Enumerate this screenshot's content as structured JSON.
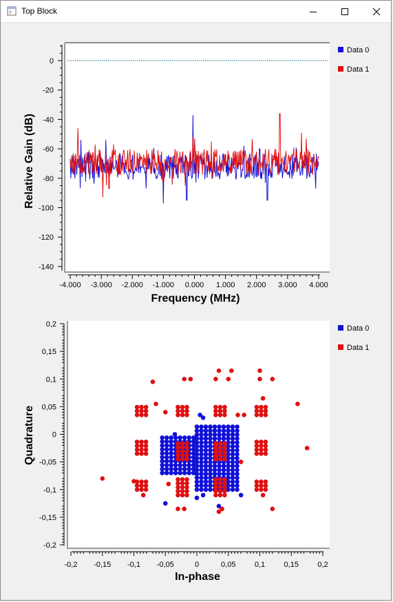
{
  "window": {
    "title": "Top Block",
    "icons": {
      "app": "app-window-icon",
      "minimize": "minimize-icon",
      "maximize": "maximize-icon",
      "close": "close-icon"
    }
  },
  "freq_plot": {
    "xlabel": "Frequency (MHz)",
    "ylabel": "Relative Gain (dB)",
    "xticks": [
      "-4.000",
      "-3.000",
      "-2.000",
      "-1.000",
      "0.000",
      "1.000",
      "2.000",
      "3.000",
      "4.000"
    ],
    "yticks": [
      "0",
      "-20",
      "-40",
      "-60",
      "-80",
      "-100",
      "-120",
      "-140"
    ],
    "legend": [
      {
        "label": "Data 0",
        "color": "#1010d8"
      },
      {
        "label": "Data 1",
        "color": "#e01010"
      }
    ]
  },
  "const_plot": {
    "xlabel": "In-phase",
    "ylabel": "Quadrature",
    "xticks": [
      "-0,2",
      "-0,15",
      "-0,1",
      "-0,05",
      "0",
      "0,05",
      "0,1",
      "0,15",
      "0,2"
    ],
    "yticks": [
      "0,2",
      "0,15",
      "0,1",
      "0,05",
      "0",
      "-0,05",
      "-0,1",
      "-0,15",
      "-0,2"
    ],
    "legend": [
      {
        "label": "Data 0",
        "color": "#1010d8"
      },
      {
        "label": "Data 1",
        "color": "#e01010"
      }
    ]
  },
  "chart_data": [
    {
      "type": "line",
      "xlabel": "Frequency (MHz)",
      "ylabel": "Relative Gain (dB)",
      "xlim": [
        -4,
        4
      ],
      "ylim": [
        -140,
        10
      ],
      "reference_line": 0,
      "grid": false,
      "legend_position": "right",
      "series": [
        {
          "name": "Data 0",
          "color": "#1010d8",
          "baseline": -72,
          "noise": 9,
          "peaks": [
            [
              -3.65,
              -54
            ],
            [
              -2.85,
              -54
            ],
            [
              -0.05,
              -37
            ],
            [
              1.6,
              -58
            ],
            [
              2.1,
              -60
            ]
          ],
          "dips": [
            [
              -1.0,
              -97
            ],
            [
              -0.25,
              -95
            ],
            [
              2.35,
              -95
            ],
            [
              3.9,
              -87
            ]
          ]
        },
        {
          "name": "Data 1",
          "color": "#e01010",
          "baseline": -69,
          "noise": 9,
          "peaks": [
            [
              -3.75,
              -46
            ],
            [
              -3.2,
              -57
            ],
            [
              -2.6,
              -57
            ],
            [
              -0.05,
              -52
            ],
            [
              0.55,
              -55
            ],
            [
              2.75,
              -36
            ],
            [
              3.45,
              -49
            ],
            [
              3.6,
              -53
            ]
          ],
          "dips": [
            [
              -2.95,
              -93
            ],
            [
              -2.75,
              -87
            ],
            [
              -0.3,
              -85
            ]
          ]
        }
      ]
    },
    {
      "type": "scatter",
      "xlabel": "In-phase",
      "ylabel": "Quadrature",
      "xlim": [
        -0.2,
        0.2
      ],
      "ylim": [
        -0.2,
        0.2
      ],
      "grid": false,
      "legend_position": "right",
      "series": [
        {
          "name": "Data 0",
          "color": "#1010d8",
          "clusters": [
            {
              "x": [
                0.0,
                0.07
              ],
              "y": [
                -0.1,
                0.02
              ],
              "step": 0.0071
            },
            {
              "x": [
                -0.055,
                -0.005
              ],
              "y": [
                -0.07,
                -0.005
              ],
              "step": 0.0071
            }
          ],
          "extra": [
            [
              0.005,
              0.035
            ],
            [
              0.01,
              0.03
            ],
            [
              -0.05,
              -0.125
            ],
            [
              0.07,
              -0.11
            ],
            [
              0.035,
              -0.13
            ],
            [
              0.0,
              -0.115
            ],
            [
              0.01,
              -0.11
            ],
            [
              -0.035,
              0.0
            ]
          ]
        },
        {
          "name": "Data 1",
          "color": "#e01010",
          "clusters": [
            {
              "x": [
                -0.03,
                -0.01
              ],
              "y": [
                0.035,
                0.055
              ],
              "step": 0.0071
            },
            {
              "x": [
                0.03,
                0.05
              ],
              "y": [
                0.035,
                0.055
              ],
              "step": 0.0071
            },
            {
              "x": [
                -0.03,
                -0.01
              ],
              "y": [
                -0.045,
                -0.01
              ],
              "step": 0.0071
            },
            {
              "x": [
                0.03,
                0.05
              ],
              "y": [
                -0.045,
                -0.01
              ],
              "step": 0.0071
            },
            {
              "x": [
                -0.03,
                -0.01
              ],
              "y": [
                -0.11,
                -0.08
              ],
              "step": 0.0071
            },
            {
              "x": [
                0.03,
                0.05
              ],
              "y": [
                -0.11,
                -0.08
              ],
              "step": 0.0071
            },
            {
              "x": [
                -0.095,
                -0.075
              ],
              "y": [
                -0.035,
                -0.01
              ],
              "step": 0.0071
            },
            {
              "x": [
                0.095,
                0.115
              ],
              "y": [
                -0.035,
                -0.01
              ],
              "step": 0.0071
            },
            {
              "x": [
                -0.095,
                -0.075
              ],
              "y": [
                0.035,
                0.055
              ],
              "step": 0.0071
            },
            {
              "x": [
                0.095,
                0.115
              ],
              "y": [
                0.035,
                0.055
              ],
              "step": 0.0071
            },
            {
              "x": [
                -0.095,
                -0.075
              ],
              "y": [
                -0.1,
                -0.085
              ],
              "step": 0.0071
            },
            {
              "x": [
                0.095,
                0.115
              ],
              "y": [
                -0.1,
                -0.085
              ],
              "step": 0.0071
            }
          ],
          "extra": [
            [
              -0.15,
              -0.08
            ],
            [
              0.175,
              -0.025
            ],
            [
              0.16,
              0.055
            ],
            [
              -0.07,
              0.095
            ],
            [
              -0.02,
              0.1
            ],
            [
              -0.01,
              0.1
            ],
            [
              0.035,
              0.115
            ],
            [
              0.055,
              0.115
            ],
            [
              0.03,
              0.1
            ],
            [
              0.05,
              0.1
            ],
            [
              0.1,
              0.115
            ],
            [
              0.1,
              0.1
            ],
            [
              0.12,
              0.1
            ],
            [
              -0.065,
              0.055
            ],
            [
              -0.05,
              0.04
            ],
            [
              -0.03,
              -0.135
            ],
            [
              -0.02,
              -0.135
            ],
            [
              0.035,
              -0.14
            ],
            [
              0.04,
              -0.135
            ],
            [
              0.12,
              -0.135
            ],
            [
              -0.1,
              -0.085
            ],
            [
              -0.085,
              -0.11
            ],
            [
              0.105,
              -0.11
            ],
            [
              -0.045,
              -0.09
            ],
            [
              0.065,
              0.035
            ],
            [
              0.075,
              0.035
            ],
            [
              0.105,
              0.065
            ],
            [
              0.07,
              -0.05
            ]
          ]
        }
      ]
    }
  ]
}
